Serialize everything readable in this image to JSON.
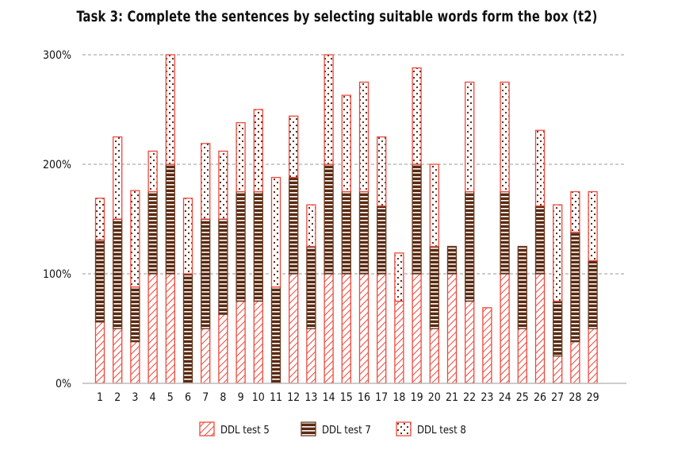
{
  "title": "Task 3: Complete the sentences by selecting suitable words form the box (t2)",
  "colors": {
    "test5_stroke": "#f0473a",
    "test7_fill": "#5a2a12",
    "test8_stroke": "#f0473a",
    "grid": "#999999",
    "axis": "#bbbbbb"
  },
  "legend": [
    {
      "label": "DDL test 5",
      "pattern": "diagonal-hatch"
    },
    {
      "label": "DDL test 7",
      "pattern": "horizontal-stripes"
    },
    {
      "label": "DDL test 8",
      "pattern": "dots"
    }
  ],
  "chart_data": {
    "type": "bar",
    "stacked": true,
    "title": "Task 3: Complete the sentences by selecting suitable words form the box (t2)",
    "xlabel": "",
    "ylabel": "",
    "ylim": [
      0,
      300
    ],
    "yticks": [
      "0%",
      "100%",
      "200%",
      "300%"
    ],
    "grid": "horizontal dashed",
    "legend_position": "bottom",
    "categories": [
      "1",
      "2",
      "3",
      "4",
      "5",
      "6",
      "7",
      "8",
      "9",
      "10",
      "11",
      "12",
      "13",
      "14",
      "15",
      "16",
      "17",
      "18",
      "19",
      "20",
      "21",
      "22",
      "23",
      "24",
      "25",
      "26",
      "27",
      "28",
      "29"
    ],
    "series": [
      {
        "name": "DDL test 5",
        "values": [
          56,
          50,
          38,
          100,
          100,
          0,
          50,
          63,
          75,
          75,
          0,
          100,
          50,
          100,
          100,
          100,
          100,
          75,
          100,
          50,
          100,
          75,
          69,
          100,
          50,
          100,
          25,
          38,
          50
        ]
      },
      {
        "name": "DDL test 7",
        "values": [
          75,
          100,
          50,
          75,
          100,
          100,
          100,
          87,
          100,
          100,
          88,
          88,
          75,
          100,
          75,
          75,
          62,
          0,
          100,
          75,
          25,
          100,
          0,
          75,
          75,
          62,
          50,
          100,
          62
        ]
      },
      {
        "name": "DDL test 8",
        "values": [
          38,
          75,
          88,
          37,
          100,
          69,
          69,
          62,
          63,
          75,
          100,
          56,
          38,
          100,
          88,
          100,
          63,
          44,
          88,
          75,
          0,
          100,
          0,
          100,
          0,
          69,
          88,
          37,
          63
        ]
      }
    ]
  }
}
